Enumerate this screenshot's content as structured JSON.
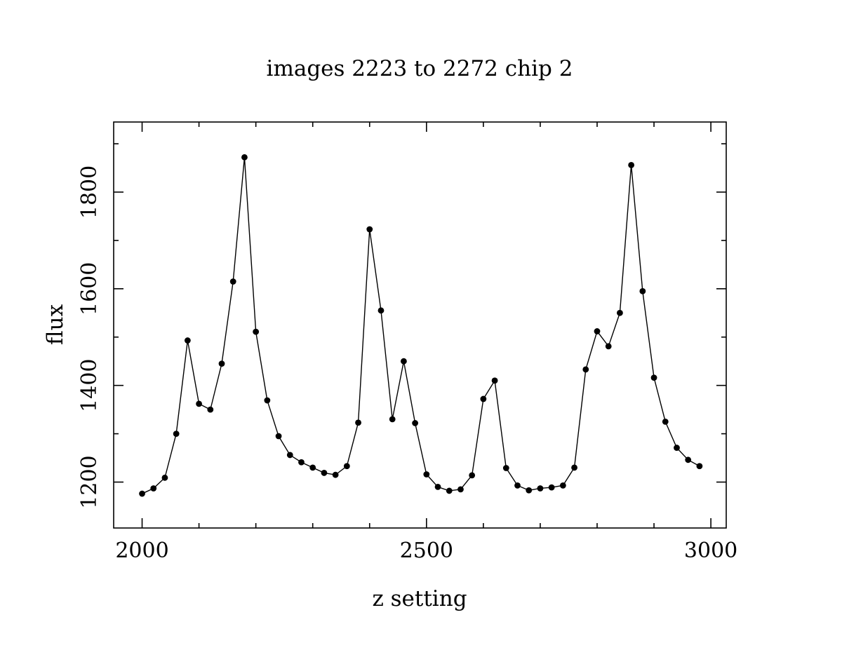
{
  "chart_data": {
    "type": "line",
    "title": "images 2223 to 2272 chip 2",
    "xlabel": "z setting",
    "ylabel": "flux",
    "xlim": [
      1950,
      3027
    ],
    "ylim": [
      1105,
      1945
    ],
    "xticks": [
      2000,
      2500,
      3000
    ],
    "xtick_labels": [
      "2000",
      "2500",
      "3000"
    ],
    "xticks_minor": [
      2100,
      2200,
      2300,
      2400,
      2600,
      2700,
      2800,
      2900
    ],
    "yticks": [
      1200,
      1400,
      1600,
      1800
    ],
    "ytick_labels": [
      "1200",
      "1400",
      "1600",
      "1800"
    ],
    "yticks_minor": [
      1300,
      1500,
      1700,
      1900
    ],
    "grid": false,
    "marker": "filled-circle",
    "series": [
      {
        "color": "#000000",
        "x": [
          2000,
          2020,
          2040,
          2060,
          2080,
          2100,
          2120,
          2140,
          2160,
          2180,
          2200,
          2220,
          2240,
          2260,
          2280,
          2300,
          2320,
          2340,
          2360,
          2380,
          2400,
          2420,
          2440,
          2460,
          2480,
          2500,
          2520,
          2540,
          2560,
          2580,
          2600,
          2620,
          2640,
          2660,
          2680,
          2700,
          2720,
          2740,
          2760,
          2780,
          2800,
          2820,
          2840,
          2860,
          2880,
          2900,
          2920,
          2940,
          2960,
          2980
        ],
        "y": [
          1176,
          1187,
          1209,
          1300,
          1493,
          1362,
          1350,
          1445,
          1615,
          1872,
          1511,
          1369,
          1295,
          1256,
          1241,
          1230,
          1219,
          1215,
          1233,
          1323,
          1723,
          1555,
          1330,
          1450,
          1322,
          1216,
          1190,
          1182,
          1185,
          1214,
          1372,
          1410,
          1229,
          1193,
          1183,
          1187,
          1189,
          1193,
          1230,
          1433,
          1512,
          1481,
          1550,
          1856,
          1595,
          1416,
          1325,
          1271,
          1246,
          1233
        ]
      }
    ]
  }
}
